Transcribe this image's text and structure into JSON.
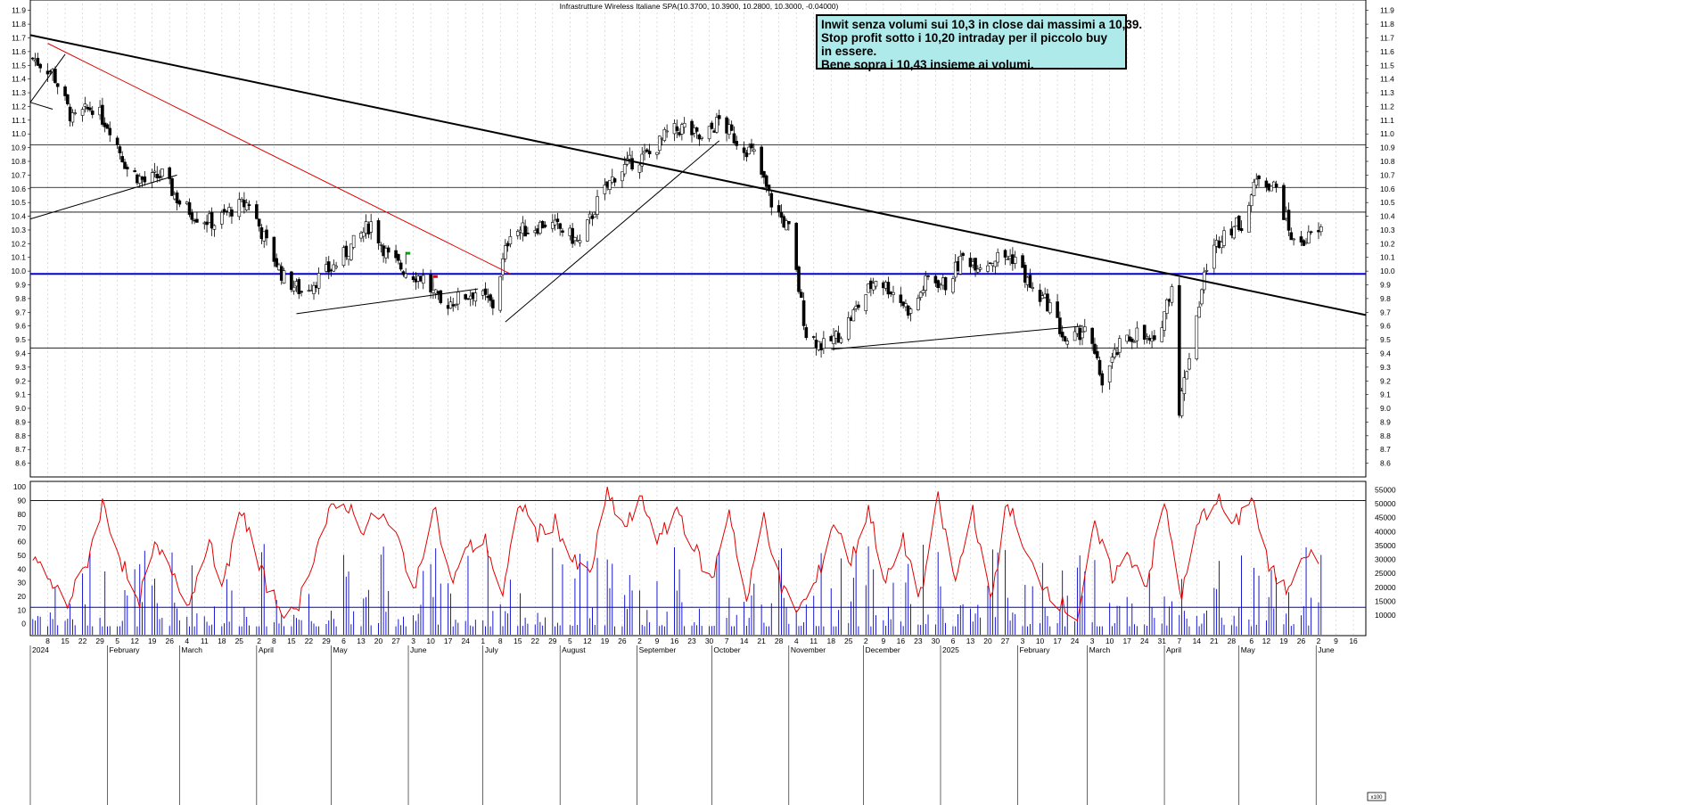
{
  "chart_data": [
    {
      "type": "candlestick",
      "title": "Infrastrutture Wireless Italiane SPA(10.3700, 10.3900, 10.2800, 10.3000, -0.04000)",
      "ylim": [
        8.5,
        11.95
      ],
      "yticks": [
        "8.6",
        "8.7",
        "8.8",
        "8.9",
        "9.0",
        "9.1",
        "9.2",
        "9.3",
        "9.4",
        "9.5",
        "9.6",
        "9.7",
        "9.8",
        "9.9",
        "10.0",
        "10.1",
        "10.2",
        "10.3",
        "10.4",
        "10.5",
        "10.6",
        "10.7",
        "10.8",
        "10.9",
        "11.0",
        "11.1",
        "11.2",
        "11.3",
        "11.4",
        "11.5",
        "11.6",
        "11.7",
        "11.8",
        "11.9"
      ],
      "horizontal_levels": [
        10.92,
        10.61,
        10.43,
        9.98,
        9.44
      ],
      "highlight_level": 9.98,
      "close_path": [
        [
          "2024-01-02",
          11.55
        ],
        [
          "2024-01-10",
          11.45
        ],
        [
          "2024-01-18",
          11.1
        ],
        [
          "2024-01-26",
          11.2
        ],
        [
          "2024-02-02",
          11.05
        ],
        [
          "2024-02-09",
          10.75
        ],
        [
          "2024-02-16",
          10.65
        ],
        [
          "2024-02-23",
          10.7
        ],
        [
          "2024-03-01",
          10.5
        ],
        [
          "2024-03-08",
          10.4
        ],
        [
          "2024-03-15",
          10.35
        ],
        [
          "2024-03-22",
          10.45
        ],
        [
          "2024-03-29",
          10.5
        ],
        [
          "2024-04-05",
          10.2
        ],
        [
          "2024-04-12",
          9.95
        ],
        [
          "2024-04-19",
          9.85
        ],
        [
          "2024-04-26",
          9.95
        ],
        [
          "2024-05-03",
          10.05
        ],
        [
          "2024-05-10",
          10.2
        ],
        [
          "2024-05-17",
          10.35
        ],
        [
          "2024-05-24",
          10.1
        ],
        [
          "2024-05-31",
          10.0
        ],
        [
          "2024-06-07",
          9.95
        ],
        [
          "2024-06-14",
          9.75
        ],
        [
          "2024-06-21",
          9.8
        ],
        [
          "2024-06-28",
          9.85
        ],
        [
          "2024-07-05",
          9.75
        ],
        [
          "2024-07-12",
          10.3
        ],
        [
          "2024-07-19",
          10.3
        ],
        [
          "2024-07-26",
          10.35
        ],
        [
          "2024-08-02",
          10.3
        ],
        [
          "2024-08-09",
          10.2
        ],
        [
          "2024-08-16",
          10.5
        ],
        [
          "2024-08-23",
          10.7
        ],
        [
          "2024-08-30",
          10.8
        ],
        [
          "2024-09-06",
          10.85
        ],
        [
          "2024-09-13",
          11.0
        ],
        [
          "2024-09-20",
          11.05
        ],
        [
          "2024-09-27",
          10.95
        ],
        [
          "2024-10-04",
          11.1
        ],
        [
          "2024-10-11",
          10.95
        ],
        [
          "2024-10-18",
          10.85
        ],
        [
          "2024-10-25",
          10.5
        ],
        [
          "2024-11-01",
          10.3
        ],
        [
          "2024-11-08",
          9.55
        ],
        [
          "2024-11-15",
          9.45
        ],
        [
          "2024-11-22",
          9.55
        ],
        [
          "2024-11-29",
          9.75
        ],
        [
          "2024-12-06",
          9.95
        ],
        [
          "2024-12-13",
          9.85
        ],
        [
          "2024-12-20",
          9.7
        ],
        [
          "2024-12-27",
          9.95
        ],
        [
          "2025-01-03",
          9.9
        ],
        [
          "2025-01-10",
          10.1
        ],
        [
          "2025-01-17",
          10.05
        ],
        [
          "2025-01-24",
          10.1
        ],
        [
          "2025-01-31",
          10.1
        ],
        [
          "2025-02-07",
          9.85
        ],
        [
          "2025-02-14",
          9.75
        ],
        [
          "2025-02-21",
          9.45
        ],
        [
          "2025-02-28",
          9.6
        ],
        [
          "2025-03-07",
          9.2
        ],
        [
          "2025-03-14",
          9.45
        ],
        [
          "2025-03-21",
          9.55
        ],
        [
          "2025-03-28",
          9.45
        ],
        [
          "2025-04-04",
          9.9
        ],
        [
          "2025-04-07",
          9.0
        ],
        [
          "2025-04-11",
          9.4
        ],
        [
          "2025-04-18",
          10.05
        ],
        [
          "2025-04-25",
          10.3
        ],
        [
          "2025-05-02",
          10.35
        ],
        [
          "2025-05-09",
          10.7
        ],
        [
          "2025-05-16",
          10.6
        ],
        [
          "2025-05-23",
          10.2
        ],
        [
          "2025-05-30",
          10.25
        ],
        [
          "2025-06-04",
          10.3
        ]
      ],
      "oscillator": {
        "ylim": [
          -8,
          104
        ],
        "yticks": [
          "0",
          "10",
          "20",
          "30",
          "40",
          "50",
          "60",
          "70",
          "80",
          "90",
          "100"
        ],
        "levels": [
          90,
          12
        ]
      },
      "volume": {
        "ylim": [
          3000,
          58000
        ],
        "yticks": [
          "10000",
          "15000",
          "20000",
          "25000",
          "30000",
          "35000",
          "40000",
          "45000",
          "50000",
          "55000"
        ]
      },
      "x_ticks": [
        [
          "2024-01-08",
          "8"
        ],
        [
          "2024-01-15",
          "15"
        ],
        [
          "2024-01-22",
          "22"
        ],
        [
          "2024-01-29",
          "29"
        ],
        [
          "2024-02-05",
          "5"
        ],
        [
          "2024-02-12",
          "12"
        ],
        [
          "2024-02-19",
          "19"
        ],
        [
          "2024-02-26",
          "26"
        ],
        [
          "2024-03-04",
          "4"
        ],
        [
          "2024-03-11",
          "11"
        ],
        [
          "2024-03-18",
          "18"
        ],
        [
          "2024-03-25",
          "25"
        ],
        [
          "2024-04-02",
          "2"
        ],
        [
          "2024-04-08",
          "8"
        ],
        [
          "2024-04-15",
          "15"
        ],
        [
          "2024-04-22",
          "22"
        ],
        [
          "2024-04-29",
          "29"
        ],
        [
          "2024-05-06",
          "6"
        ],
        [
          "2024-05-13",
          "13"
        ],
        [
          "2024-05-20",
          "20"
        ],
        [
          "2024-05-27",
          "27"
        ],
        [
          "2024-06-03",
          "3"
        ],
        [
          "2024-06-10",
          "10"
        ],
        [
          "2024-06-17",
          "17"
        ],
        [
          "2024-06-24",
          "24"
        ],
        [
          "2024-07-01",
          "1"
        ],
        [
          "2024-07-08",
          "8"
        ],
        [
          "2024-07-15",
          "15"
        ],
        [
          "2024-07-22",
          "22"
        ],
        [
          "2024-07-29",
          "29"
        ],
        [
          "2024-08-05",
          "5"
        ],
        [
          "2024-08-12",
          "12"
        ],
        [
          "2024-08-19",
          "19"
        ],
        [
          "2024-08-26",
          "26"
        ],
        [
          "2024-09-02",
          "2"
        ],
        [
          "2024-09-09",
          "9"
        ],
        [
          "2024-09-16",
          "16"
        ],
        [
          "2024-09-23",
          "23"
        ],
        [
          "2024-09-30",
          "30"
        ],
        [
          "2024-10-07",
          "7"
        ],
        [
          "2024-10-14",
          "14"
        ],
        [
          "2024-10-21",
          "21"
        ],
        [
          "2024-10-28",
          "28"
        ],
        [
          "2024-11-04",
          "4"
        ],
        [
          "2024-11-11",
          "11"
        ],
        [
          "2024-11-18",
          "18"
        ],
        [
          "2024-11-25",
          "25"
        ],
        [
          "2024-12-02",
          "2"
        ],
        [
          "2024-12-09",
          "9"
        ],
        [
          "2024-12-16",
          "16"
        ],
        [
          "2024-12-23",
          "23"
        ],
        [
          "2024-12-30",
          "30"
        ],
        [
          "2025-01-06",
          "6"
        ],
        [
          "2025-01-13",
          "13"
        ],
        [
          "2025-01-20",
          "20"
        ],
        [
          "2025-01-27",
          "27"
        ],
        [
          "2025-02-03",
          "3"
        ],
        [
          "2025-02-10",
          "10"
        ],
        [
          "2025-02-17",
          "17"
        ],
        [
          "2025-02-24",
          "24"
        ],
        [
          "2025-03-03",
          "3"
        ],
        [
          "2025-03-10",
          "10"
        ],
        [
          "2025-03-17",
          "17"
        ],
        [
          "2025-03-24",
          "24"
        ],
        [
          "2025-03-31",
          "31"
        ],
        [
          "2025-04-07",
          "7"
        ],
        [
          "2025-04-14",
          "14"
        ],
        [
          "2025-04-21",
          "21"
        ],
        [
          "2025-04-28",
          "28"
        ],
        [
          "2025-05-06",
          "6"
        ],
        [
          "2025-05-12",
          "12"
        ],
        [
          "2025-05-19",
          "19"
        ],
        [
          "2025-05-26",
          "26"
        ],
        [
          "2025-06-02",
          "2"
        ],
        [
          "2025-06-09",
          "9"
        ],
        [
          "2025-06-16",
          "16"
        ]
      ],
      "month_labels": [
        [
          "2024-01-01",
          "2024"
        ],
        [
          "2024-02-01",
          "February"
        ],
        [
          "2024-03-01",
          "March"
        ],
        [
          "2024-04-01",
          "April"
        ],
        [
          "2024-05-01",
          "May"
        ],
        [
          "2024-06-01",
          "June"
        ],
        [
          "2024-07-01",
          "July"
        ],
        [
          "2024-08-01",
          "August"
        ],
        [
          "2024-09-01",
          "September"
        ],
        [
          "2024-10-01",
          "October"
        ],
        [
          "2024-11-01",
          "November"
        ],
        [
          "2024-12-01",
          "December"
        ],
        [
          "2025-01-01",
          "2025"
        ],
        [
          "2025-02-01",
          "February"
        ],
        [
          "2025-03-01",
          "March"
        ],
        [
          "2025-04-01",
          "April"
        ],
        [
          "2025-05-01",
          "May"
        ],
        [
          "2025-06-01",
          "June"
        ]
      ],
      "x_range": [
        "2024-01-01",
        "2025-06-21"
      ],
      "trendlines": [
        {
          "from": [
            "2024-01-01",
            11.72
          ],
          "to": [
            "2025-06-21",
            9.68
          ],
          "color": "#000000"
        },
        {
          "from": [
            "2024-01-08",
            11.66
          ],
          "to": [
            "2024-07-12",
            9.98
          ],
          "color": "#e00000"
        },
        {
          "from": [
            "2024-01-01",
            10.38
          ],
          "to": [
            "2024-02-29",
            10.7
          ],
          "color": "#000000"
        },
        {
          "from": [
            "2024-01-01",
            11.23
          ],
          "to": [
            "2024-01-15",
            11.58
          ],
          "color": "#000000"
        },
        {
          "from": [
            "2024-01-01",
            11.23
          ],
          "to": [
            "2024-01-10",
            11.18
          ],
          "color": "#000000"
        },
        {
          "from": [
            "2024-04-17",
            9.69
          ],
          "to": [
            "2024-06-29",
            9.87
          ],
          "color": "#000000"
        },
        {
          "from": [
            "2024-07-10",
            9.63
          ],
          "to": [
            "2024-10-04",
            10.95
          ],
          "color": "#000000"
        },
        {
          "from": [
            "2024-11-18",
            9.43
          ],
          "to": [
            "2025-02-27",
            9.6
          ],
          "color": "#000000"
        }
      ],
      "oscillator_series": [
        [
          "2024-01-02",
          50
        ],
        [
          "2024-01-09",
          30
        ],
        [
          "2024-01-16",
          15
        ],
        [
          "2024-01-23",
          40
        ],
        [
          "2024-01-30",
          88
        ],
        [
          "2024-02-06",
          50
        ],
        [
          "2024-02-13",
          12
        ],
        [
          "2024-02-20",
          55
        ],
        [
          "2024-02-27",
          40
        ],
        [
          "2024-03-05",
          15
        ],
        [
          "2024-03-12",
          60
        ],
        [
          "2024-03-19",
          30
        ],
        [
          "2024-03-26",
          85
        ],
        [
          "2024-04-02",
          40
        ],
        [
          "2024-04-09",
          15
        ],
        [
          "2024-04-16",
          5
        ],
        [
          "2024-04-23",
          45
        ],
        [
          "2024-04-30",
          80
        ],
        [
          "2024-05-07",
          88
        ],
        [
          "2024-05-14",
          70
        ],
        [
          "2024-05-21",
          80
        ],
        [
          "2024-05-28",
          60
        ],
        [
          "2024-06-04",
          25
        ],
        [
          "2024-06-11",
          90
        ],
        [
          "2024-06-18",
          30
        ],
        [
          "2024-06-25",
          55
        ],
        [
          "2024-07-02",
          60
        ],
        [
          "2024-07-09",
          20
        ],
        [
          "2024-07-16",
          90
        ],
        [
          "2024-07-23",
          65
        ],
        [
          "2024-07-30",
          75
        ],
        [
          "2024-08-06",
          45
        ],
        [
          "2024-08-13",
          35
        ],
        [
          "2024-08-20",
          95
        ],
        [
          "2024-08-27",
          70
        ],
        [
          "2024-09-03",
          90
        ],
        [
          "2024-09-10",
          60
        ],
        [
          "2024-09-17",
          85
        ],
        [
          "2024-09-24",
          55
        ],
        [
          "2024-10-01",
          30
        ],
        [
          "2024-10-08",
          85
        ],
        [
          "2024-10-15",
          15
        ],
        [
          "2024-10-22",
          80
        ],
        [
          "2024-10-29",
          25
        ],
        [
          "2024-11-05",
          10
        ],
        [
          "2024-11-12",
          30
        ],
        [
          "2024-11-19",
          75
        ],
        [
          "2024-11-26",
          45
        ],
        [
          "2024-12-03",
          85
        ],
        [
          "2024-12-10",
          30
        ],
        [
          "2024-12-17",
          60
        ],
        [
          "2024-12-24",
          20
        ],
        [
          "2024-12-31",
          90
        ],
        [
          "2025-01-07",
          30
        ],
        [
          "2025-01-14",
          85
        ],
        [
          "2025-01-21",
          15
        ],
        [
          "2025-01-28",
          90
        ],
        [
          "2025-02-04",
          50
        ],
        [
          "2025-02-11",
          30
        ],
        [
          "2025-02-18",
          15
        ],
        [
          "2025-02-25",
          5
        ],
        [
          "2025-03-04",
          70
        ],
        [
          "2025-03-11",
          35
        ],
        [
          "2025-03-18",
          50
        ],
        [
          "2025-03-25",
          30
        ],
        [
          "2025-04-01",
          88
        ],
        [
          "2025-04-08",
          20
        ],
        [
          "2025-04-15",
          75
        ],
        [
          "2025-04-22",
          92
        ],
        [
          "2025-04-29",
          70
        ],
        [
          "2025-05-06",
          95
        ],
        [
          "2025-05-13",
          40
        ],
        [
          "2025-05-20",
          25
        ],
        [
          "2025-05-27",
          55
        ],
        [
          "2025-06-03",
          40
        ]
      ]
    }
  ]
}
